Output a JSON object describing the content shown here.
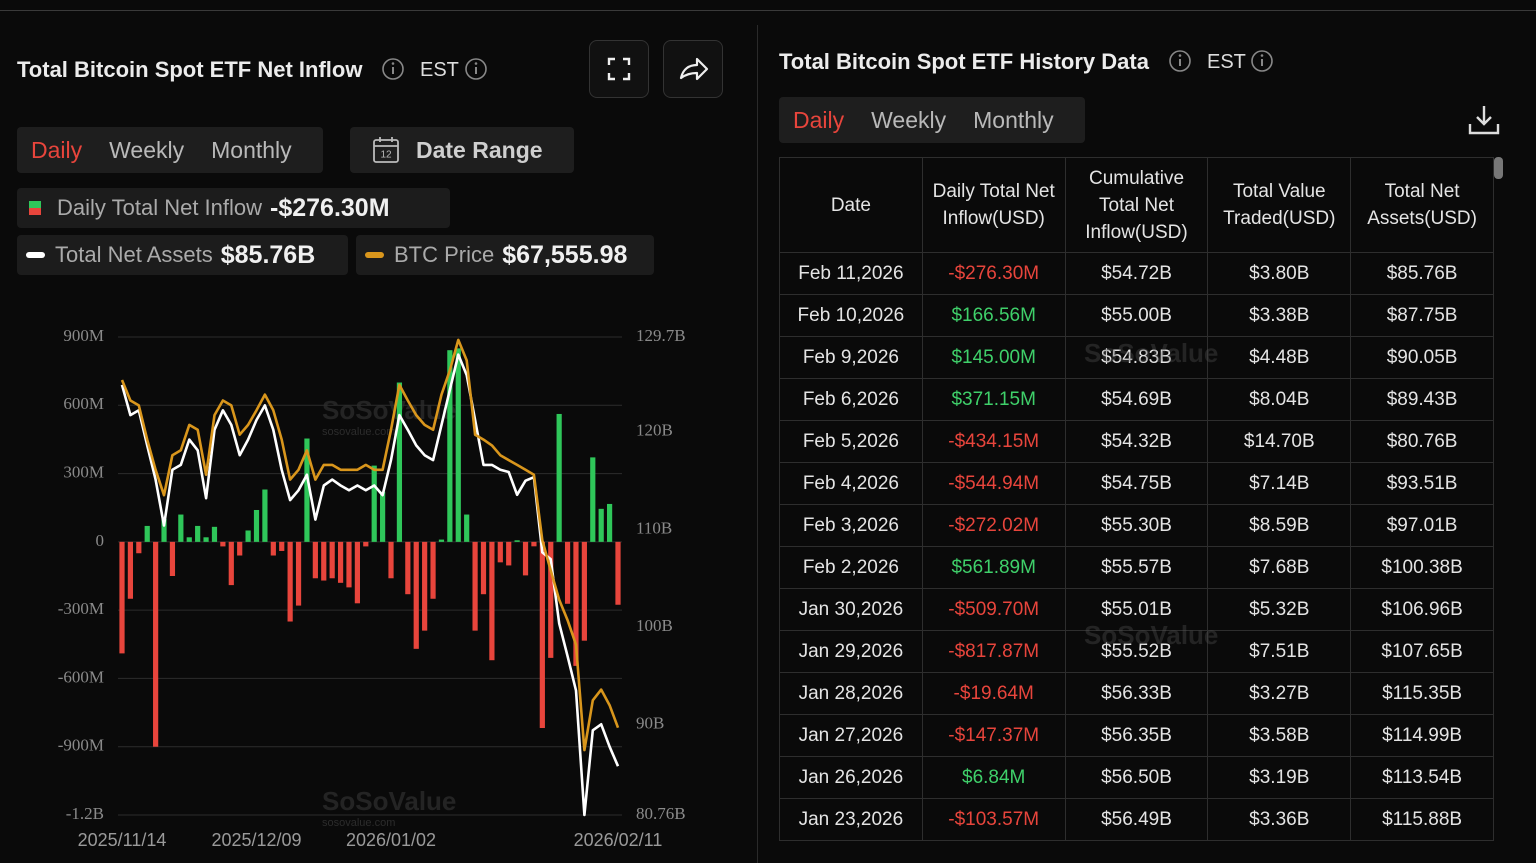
{
  "left": {
    "title": "Total Bitcoin Spot ETF Net Inflow",
    "timezone": "EST",
    "tabs": [
      "Daily",
      "Weekly",
      "Monthly"
    ],
    "date_range": "Date Range",
    "legend_values": [
      "-$276.30M",
      "$85.76B",
      "$67,555.98"
    ]
  },
  "watermark": "SoSoValue",
  "watermark_url": "sosovalue.com",
  "chart_data": {
    "type": "bar",
    "categories": [
      "2025/11/14",
      null,
      null,
      null,
      null,
      null,
      null,
      null,
      null,
      null,
      null,
      null,
      null,
      null,
      null,
      null,
      "2025/12/09",
      null,
      null,
      null,
      null,
      null,
      null,
      null,
      null,
      null,
      null,
      null,
      null,
      null,
      null,
      null,
      "2026/01/02",
      null,
      null,
      null,
      null,
      null,
      null,
      null,
      null,
      null,
      null,
      null,
      null,
      null,
      null,
      null,
      null,
      null,
      null,
      null,
      null,
      null,
      null,
      null,
      null,
      null,
      null,
      "2026/02/11"
    ],
    "series": [
      {
        "name": "Daily Total Net Inflow",
        "type": "bar",
        "positive_color": "#2fc75a",
        "negative_color": "#e8453c",
        "values": [
          -490,
          -250,
          -50,
          70,
          -900,
          100,
          -150,
          120,
          20,
          70,
          20,
          66,
          -20,
          -190,
          -60,
          50,
          140,
          230,
          -60,
          -40,
          -350,
          -280,
          454,
          -160,
          -170,
          -160,
          -180,
          -200,
          -270,
          -20,
          335,
          220,
          -160,
          700,
          -230,
          -470,
          -390,
          -250,
          10,
          842,
          850,
          120,
          -390,
          -230,
          -520,
          -90,
          -103.57,
          6.84,
          -147.37,
          -19.64,
          -817.87,
          -509.7,
          561.89,
          -272.02,
          -544.94,
          -434.15,
          371.15,
          145.0,
          166.56,
          -276.3
        ]
      },
      {
        "name": "Total Net Assets",
        "type": "line",
        "axis": "y2",
        "color": "#ffffff",
        "values": [
          124.8,
          121.7,
          122.2,
          118.6,
          115.1,
          110.4,
          116.1,
          116.6,
          119.2,
          118.1,
          113.2,
          120.2,
          122.2,
          120.7,
          117.6,
          119.2,
          121.2,
          122.7,
          120.2,
          116.1,
          113.0,
          114.0,
          115.6,
          111.0,
          114.5,
          115.1,
          114.5,
          114.0,
          114.5,
          114.0,
          114.5,
          113.5,
          117.1,
          121.7,
          120.2,
          118.6,
          117.6,
          117.1,
          120.7,
          124.3,
          127.9,
          125.8,
          121.2,
          116.6,
          116.6,
          116.1,
          115.88,
          113.54,
          114.99,
          115.35,
          107.65,
          106.96,
          100.38,
          97.01,
          93.51,
          80.76,
          89.43,
          90.05,
          87.75,
          85.76
        ]
      },
      {
        "name": "BTC Price",
        "type": "line",
        "axis": "y2",
        "color": "#d9961c",
        "values": [
          125.3,
          123.2,
          122.7,
          119.2,
          116.1,
          113.5,
          117.6,
          118.1,
          120.7,
          120.2,
          115.6,
          121.7,
          123.2,
          122.7,
          119.7,
          120.7,
          122.2,
          123.8,
          122.2,
          119.2,
          115.1,
          116.1,
          118.1,
          115.1,
          116.6,
          116.6,
          116.1,
          116.1,
          116.1,
          116.6,
          116.1,
          116.1,
          120.2,
          124.8,
          123.2,
          121.7,
          120.7,
          120.2,
          123.8,
          126.3,
          129.4,
          127.3,
          119.7,
          119.2,
          118.6,
          117.6,
          117.1,
          116.6,
          116.1,
          115.6,
          108.9,
          105.8,
          102.8,
          100.7,
          98.2,
          87.4,
          92.5,
          93.6,
          92.0,
          89.7
        ]
      }
    ],
    "ylim": [
      -1200,
      900
    ],
    "yticks": [
      {
        "value": 900,
        "label": "900M"
      },
      {
        "value": 600,
        "label": "600M"
      },
      {
        "value": 300,
        "label": "300M"
      },
      0,
      {
        "value": -300,
        "label": "-300M"
      },
      {
        "value": -600,
        "label": "-600M"
      },
      {
        "value": -900,
        "label": "-900M"
      },
      {
        "value": -1200,
        "label": "-1.2B"
      }
    ],
    "y2lim": [
      80.76,
      129.7
    ],
    "y2ticks": [
      {
        "value": 129.7,
        "label": "129.7B"
      },
      {
        "value": 120,
        "label": "120B"
      },
      {
        "value": 110,
        "label": "110B"
      },
      {
        "value": 100,
        "label": "100B"
      },
      {
        "value": 90,
        "label": "90B"
      },
      {
        "value": 80.76,
        "label": "80.76B"
      }
    ],
    "grid": true
  },
  "right": {
    "title": "Total Bitcoin Spot ETF History Data",
    "timezone": "EST",
    "tabs": [
      "Daily",
      "Weekly",
      "Monthly"
    ]
  },
  "table": {
    "positive_color": "#3fd06a",
    "negative_color": "#e8453c",
    "columns": [
      "Date",
      "Daily Total Net Inflow(USD)",
      "Cumulative Total Net Inflow(USD)",
      "Total Value Traded(USD)",
      "Total Net Assets(USD)"
    ],
    "rows": [
      [
        "Feb 11,2026",
        "-$276.30M",
        "$54.72B",
        "$3.80B",
        "$85.76B"
      ],
      [
        "Feb 10,2026",
        "$166.56M",
        "$55.00B",
        "$3.38B",
        "$87.75B"
      ],
      [
        "Feb 9,2026",
        "$145.00M",
        "$54.83B",
        "$4.48B",
        "$90.05B"
      ],
      [
        "Feb 6,2026",
        "$371.15M",
        "$54.69B",
        "$8.04B",
        "$89.43B"
      ],
      [
        "Feb 5,2026",
        "-$434.15M",
        "$54.32B",
        "$14.70B",
        "$80.76B"
      ],
      [
        "Feb 4,2026",
        "-$544.94M",
        "$54.75B",
        "$7.14B",
        "$93.51B"
      ],
      [
        "Feb 3,2026",
        "-$272.02M",
        "$55.30B",
        "$8.59B",
        "$97.01B"
      ],
      [
        "Feb 2,2026",
        "$561.89M",
        "$55.57B",
        "$7.68B",
        "$100.38B"
      ],
      [
        "Jan 30,2026",
        "-$509.70M",
        "$55.01B",
        "$5.32B",
        "$106.96B"
      ],
      [
        "Jan 29,2026",
        "-$817.87M",
        "$55.52B",
        "$7.51B",
        "$107.65B"
      ],
      [
        "Jan 28,2026",
        "-$19.64M",
        "$56.33B",
        "$3.27B",
        "$115.35B"
      ],
      [
        "Jan 27,2026",
        "-$147.37M",
        "$56.35B",
        "$3.58B",
        "$114.99B"
      ],
      [
        "Jan 26,2026",
        "$6.84M",
        "$56.50B",
        "$3.19B",
        "$113.54B"
      ],
      [
        "Jan 23,2026",
        "-$103.57M",
        "$56.49B",
        "$3.36B",
        "$115.88B"
      ]
    ]
  }
}
